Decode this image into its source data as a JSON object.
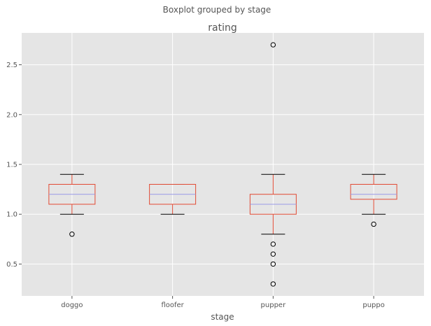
{
  "chart_data": {
    "type": "boxplot",
    "suptitle": "Boxplot grouped by stage",
    "title": "rating",
    "xlabel": "stage",
    "ylabel": "",
    "categories": [
      "doggo",
      "floofer",
      "pupper",
      "puppo"
    ],
    "ylim": [
      0.18,
      2.82
    ],
    "yticks": [
      0.5,
      1.0,
      1.5,
      2.0,
      2.5
    ],
    "ytick_labels": [
      "0.5",
      "1.0",
      "1.5",
      "2.0",
      "2.5"
    ],
    "grid": true,
    "boxes": [
      {
        "category": "doggo",
        "whislo": 1.0,
        "q1": 1.1,
        "med": 1.2,
        "q3": 1.3,
        "whishi": 1.4,
        "fliers": [
          0.8
        ]
      },
      {
        "category": "floofer",
        "whislo": 1.0,
        "q1": 1.1,
        "med": 1.2,
        "q3": 1.3,
        "whishi": 1.3,
        "fliers": []
      },
      {
        "category": "pupper",
        "whislo": 0.8,
        "q1": 1.0,
        "med": 1.1,
        "q3": 1.2,
        "whishi": 1.4,
        "fliers": [
          0.7,
          0.6,
          0.5,
          0.3,
          2.7
        ]
      },
      {
        "category": "puppo",
        "whislo": 1.0,
        "q1": 1.15,
        "med": 1.2,
        "q3": 1.3,
        "whishi": 1.4,
        "fliers": [
          0.9
        ]
      }
    ],
    "colors": {
      "background": "#e5e5e5",
      "grid": "#ffffff",
      "box": "#e24a33",
      "median": "#8eba42",
      "median_line": "#9a9ae6",
      "whisker_cap": "#000000",
      "flier": "#000000"
    }
  }
}
